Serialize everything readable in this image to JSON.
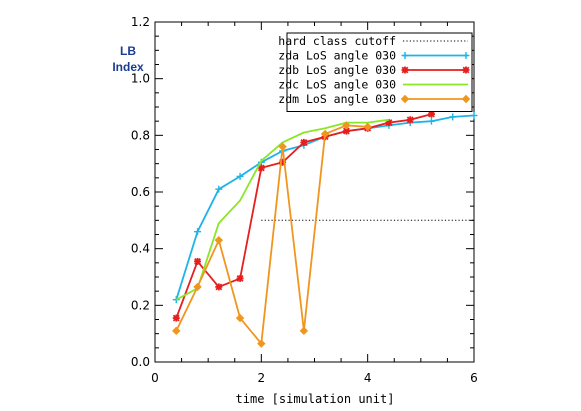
{
  "chart_data": {
    "type": "line",
    "title": "",
    "xlabel": "time [simulation unit]",
    "ylabel": [
      "LB",
      "Index"
    ],
    "xlim": [
      0,
      6
    ],
    "ylim": [
      0.0,
      1.2
    ],
    "xticks": [
      0,
      2,
      4,
      6
    ],
    "yticks": [
      0.0,
      0.2,
      0.4,
      0.6,
      0.8,
      1.0,
      1.2
    ],
    "ytick_labels": [
      "0.0",
      "0.2",
      "0.4",
      "0.6",
      "0.8",
      "1.0",
      "1.2"
    ],
    "legend_position": "top-right",
    "grid": false,
    "series": [
      {
        "name": "hard class cutoff",
        "color": "#000000",
        "style": "dotted",
        "marker": "none",
        "x": [
          2.0,
          6.0
        ],
        "y": [
          0.5,
          0.5
        ]
      },
      {
        "name": "zda LoS angle 030",
        "color": "#1eb4e6",
        "style": "solid",
        "marker": "plus",
        "x": [
          0.4,
          0.8,
          1.2,
          1.6,
          2.0,
          2.4,
          2.8,
          3.2,
          3.6,
          4.0,
          4.4,
          4.8,
          5.2,
          5.6,
          6.0
        ],
        "y": [
          0.22,
          0.46,
          0.61,
          0.655,
          0.705,
          0.745,
          0.765,
          0.795,
          0.815,
          0.825,
          0.835,
          0.845,
          0.85,
          0.865,
          0.87
        ]
      },
      {
        "name": "zdb LoS angle 030",
        "color": "#e61e1e",
        "style": "solid",
        "marker": "asterisk",
        "x": [
          0.4,
          0.8,
          1.2,
          1.6,
          2.0,
          2.4,
          2.8,
          3.2,
          3.6,
          4.0,
          4.4,
          4.8,
          5.2
        ],
        "y": [
          0.155,
          0.355,
          0.265,
          0.295,
          0.685,
          0.705,
          0.775,
          0.795,
          0.815,
          0.825,
          0.845,
          0.855,
          0.875
        ]
      },
      {
        "name": "zdc LoS angle 030",
        "color": "#8ce628",
        "style": "solid",
        "marker": "none",
        "x": [
          0.4,
          0.8,
          1.2,
          1.6,
          2.0,
          2.4,
          2.8,
          3.2,
          3.6,
          4.0,
          4.4
        ],
        "y": [
          0.22,
          0.26,
          0.49,
          0.57,
          0.71,
          0.775,
          0.81,
          0.825,
          0.845,
          0.845,
          0.855
        ]
      },
      {
        "name": "zdm LoS angle 030",
        "color": "#f0961e",
        "style": "solid",
        "marker": "diamond",
        "x": [
          0.4,
          0.8,
          1.2,
          1.6,
          2.0,
          2.4,
          2.8,
          3.2,
          3.6,
          4.0
        ],
        "y": [
          0.11,
          0.265,
          0.43,
          0.155,
          0.065,
          0.76,
          0.11,
          0.805,
          0.835,
          0.83
        ]
      }
    ]
  }
}
